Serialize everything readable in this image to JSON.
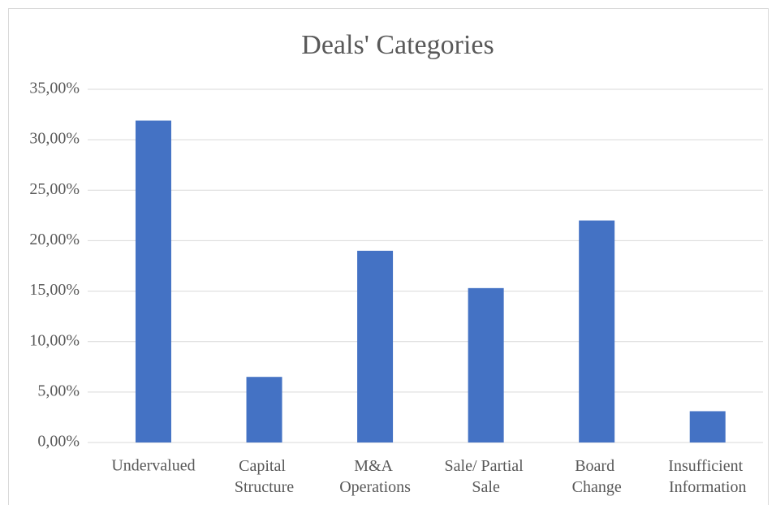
{
  "chart_data": {
    "type": "bar",
    "title": "Deals' Categories",
    "categories": [
      "Undervalued",
      "Capital Structure",
      "M&A Operations",
      "Sale/ Partial Sale",
      "Board Change",
      "Insufficient Information"
    ],
    "values": [
      31.9,
      6.5,
      19.0,
      15.3,
      22.0,
      3.1
    ],
    "color": "#4472c4",
    "ylim": [
      0,
      35
    ],
    "yticks": [
      {
        "value": 0,
        "label": "0,00%"
      },
      {
        "value": 5,
        "label": "5,00%"
      },
      {
        "value": 10,
        "label": "10,00%"
      },
      {
        "value": 15,
        "label": "15,00%"
      },
      {
        "value": 20,
        "label": "20,00%"
      },
      {
        "value": 25,
        "label": "25,00%"
      },
      {
        "value": 30,
        "label": "30,00%"
      },
      {
        "value": 35,
        "label": "35,00%"
      }
    ],
    "grid": true
  }
}
